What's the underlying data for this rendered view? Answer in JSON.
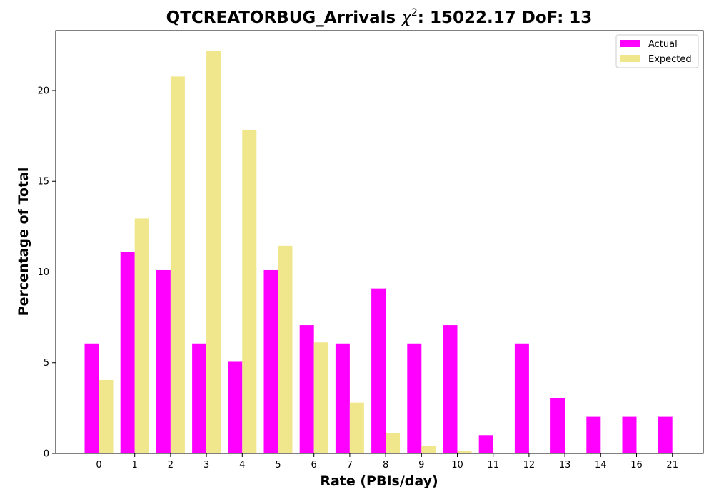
{
  "chart_data": {
    "type": "bar",
    "title_prefix": "QTCREATORBUG_Arrivals ",
    "title_symbol": "χ",
    "title_superscript": "2",
    "title_suffix": ": 15022.17 DoF: 13",
    "xlabel": "Rate (PBIs/day)",
    "ylabel": "Percentage of Total",
    "categories": [
      "0",
      "1",
      "2",
      "3",
      "4",
      "5",
      "6",
      "7",
      "8",
      "9",
      "10",
      "11",
      "12",
      "13",
      "14",
      "16",
      "21"
    ],
    "series": [
      {
        "name": "Actual",
        "color": "#ff00ff",
        "values": [
          6.06,
          11.11,
          10.1,
          6.06,
          5.05,
          10.1,
          7.07,
          6.06,
          9.09,
          6.06,
          7.07,
          1.01,
          6.06,
          3.03,
          2.02,
          2.02,
          2.02
        ]
      },
      {
        "name": "Expected",
        "color": "#f0e68c",
        "values": [
          4.05,
          12.95,
          20.77,
          22.2,
          17.84,
          11.44,
          6.12,
          2.8,
          1.12,
          0.4,
          0.13,
          0.04,
          0.01,
          0.0,
          0.0,
          0.0,
          0.0
        ]
      }
    ],
    "yticks": [
      0,
      5,
      10,
      15,
      20
    ],
    "ylim": [
      0,
      23.3
    ],
    "grid": false,
    "legend_position": "top-right"
  }
}
